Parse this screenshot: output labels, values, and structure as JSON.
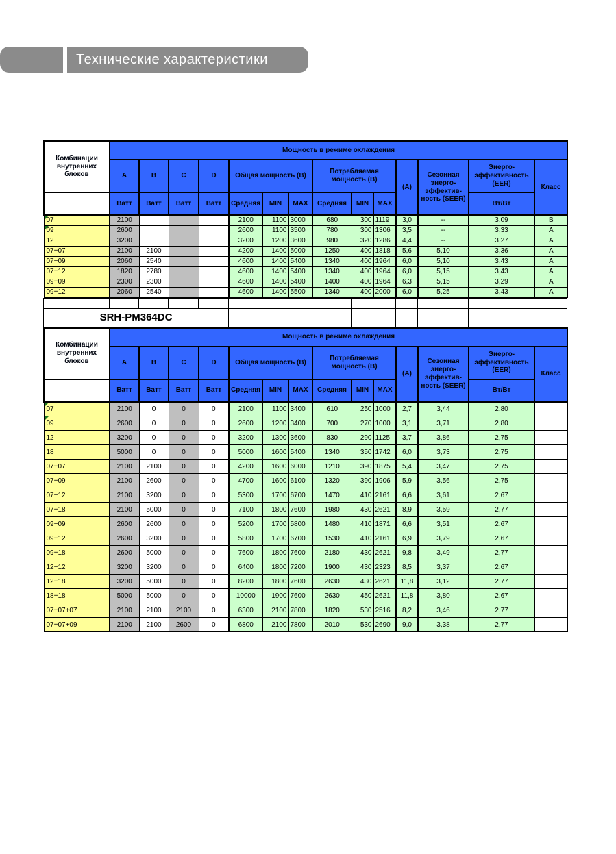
{
  "banner": {
    "title": "Технические характеристики"
  },
  "model_title": "SRH-PM364DC",
  "hdr": {
    "combos": "Комбинации внутренних блоков",
    "cooling": "Мощность в режиме охлаждения",
    "a": "A",
    "b": "B",
    "c": "C",
    "d": "D",
    "watt": "Ватт",
    "total_power": "Общая мощность (В)",
    "consumed_power": "Потребляемая мощность (В)",
    "avg": "Средняя",
    "min": "MIN",
    "max": "MAX",
    "amps": "(A)",
    "seer": "Сезонная энерго-эффектив-ность (SEER)",
    "eer": "Энерго-эффективность (EER)",
    "wt_wt": "Вт/Вт",
    "klass": "Класс"
  },
  "colors": {
    "banner_gray": "#8B8B8B",
    "header_blue": "#3366FF",
    "label_yellow": "#FFFF99",
    "cell_gray": "#BFBFBF",
    "cell_green": "#CCFFCC",
    "marker_green": "#1E7A1E"
  },
  "table1": {
    "rows": [
      {
        "combo": "07",
        "marker": true,
        "a": "2100",
        "b": "",
        "c": "",
        "d": "",
        "tavg": "2100",
        "tmin": "1100",
        "tmax": "3000",
        "cavg": "680",
        "cmin": "300",
        "cmax": "1119",
        "amp": "3,0",
        "seer": "--",
        "eer": "3,09",
        "cls": "B"
      },
      {
        "combo": "09",
        "marker": true,
        "a": "2600",
        "b": "",
        "c": "",
        "d": "",
        "tavg": "2600",
        "tmin": "1100",
        "tmax": "3500",
        "cavg": "780",
        "cmin": "300",
        "cmax": "1306",
        "amp": "3,5",
        "seer": "--",
        "eer": "3,33",
        "cls": "A"
      },
      {
        "combo": "12",
        "a": "3200",
        "b": "",
        "c": "",
        "d": "",
        "tavg": "3200",
        "tmin": "1200",
        "tmax": "3600",
        "cavg": "980",
        "cmin": "320",
        "cmax": "1286",
        "amp": "4,4",
        "seer": "--",
        "eer": "3,27",
        "cls": "A"
      },
      {
        "combo": "07+07",
        "a": "2100",
        "b": "2100",
        "c": "",
        "d": "",
        "tavg": "4200",
        "tmin": "1400",
        "tmax": "5000",
        "cavg": "1250",
        "cmin": "400",
        "cmax": "1818",
        "amp": "5,6",
        "seer": "5,10",
        "eer": "3,36",
        "cls": "A"
      },
      {
        "combo": "07+09",
        "a": "2060",
        "b": "2540",
        "c": "",
        "d": "",
        "tavg": "4600",
        "tmin": "1400",
        "tmax": "5400",
        "cavg": "1340",
        "cmin": "400",
        "cmax": "1964",
        "amp": "6,0",
        "seer": "5,10",
        "eer": "3,43",
        "cls": "A"
      },
      {
        "combo": "07+12",
        "a": "1820",
        "b": "2780",
        "c": "",
        "d": "",
        "tavg": "4600",
        "tmin": "1400",
        "tmax": "5400",
        "cavg": "1340",
        "cmin": "400",
        "cmax": "1964",
        "amp": "6,0",
        "seer": "5,15",
        "eer": "3,43",
        "cls": "A"
      },
      {
        "combo": "09+09",
        "a": "2300",
        "b": "2300",
        "c": "",
        "d": "",
        "tavg": "4600",
        "tmin": "1400",
        "tmax": "5400",
        "cavg": "1400",
        "cmin": "400",
        "cmax": "1964",
        "amp": "6,3",
        "seer": "5,15",
        "eer": "3,29",
        "cls": "A"
      },
      {
        "combo": "09+12",
        "a": "2060",
        "b": "2540",
        "c": "",
        "d": "",
        "tavg": "4600",
        "tmin": "1400",
        "tmax": "5500",
        "cavg": "1340",
        "cmin": "400",
        "cmax": "2000",
        "amp": "6,0",
        "seer": "5,25",
        "eer": "3,43",
        "cls": "A"
      }
    ]
  },
  "table2": {
    "rows": [
      {
        "combo": "07",
        "marker": true,
        "a": "2100",
        "b": "0",
        "c": "0",
        "d": "0",
        "tavg": "2100",
        "tmin": "1100",
        "tmax": "3400",
        "cavg": "610",
        "cmin": "250",
        "cmax": "1000",
        "amp": "2,7",
        "seer": "3,44",
        "eer": "2,80",
        "cls": ""
      },
      {
        "combo": "09",
        "marker": true,
        "a": "2600",
        "b": "0",
        "c": "0",
        "d": "0",
        "tavg": "2600",
        "tmin": "1200",
        "tmax": "3400",
        "cavg": "700",
        "cmin": "270",
        "cmax": "1000",
        "amp": "3,1",
        "seer": "3,71",
        "eer": "2,80",
        "cls": ""
      },
      {
        "combo": "12",
        "a": "3200",
        "b": "0",
        "c": "0",
        "d": "0",
        "tavg": "3200",
        "tmin": "1300",
        "tmax": "3600",
        "cavg": "830",
        "cmin": "290",
        "cmax": "1125",
        "amp": "3,7",
        "seer": "3,86",
        "eer": "2,75",
        "cls": ""
      },
      {
        "combo": "18",
        "a": "5000",
        "b": "0",
        "c": "0",
        "d": "0",
        "tavg": "5000",
        "tmin": "1600",
        "tmax": "5400",
        "cavg": "1340",
        "cmin": "350",
        "cmax": "1742",
        "amp": "6,0",
        "seer": "3,73",
        "eer": "2,75",
        "cls": ""
      },
      {
        "combo": "07+07",
        "a": "2100",
        "b": "2100",
        "c": "0",
        "d": "0",
        "tavg": "4200",
        "tmin": "1600",
        "tmax": "6000",
        "cavg": "1210",
        "cmin": "390",
        "cmax": "1875",
        "amp": "5,4",
        "seer": "3,47",
        "eer": "2,75",
        "cls": ""
      },
      {
        "combo": "07+09",
        "a": "2100",
        "b": "2600",
        "c": "0",
        "d": "0",
        "tavg": "4700",
        "tmin": "1600",
        "tmax": "6100",
        "cavg": "1320",
        "cmin": "390",
        "cmax": "1906",
        "amp": "5,9",
        "seer": "3,56",
        "eer": "2,75",
        "cls": ""
      },
      {
        "combo": "07+12",
        "a": "2100",
        "b": "3200",
        "c": "0",
        "d": "0",
        "tavg": "5300",
        "tmin": "1700",
        "tmax": "6700",
        "cavg": "1470",
        "cmin": "410",
        "cmax": "2161",
        "amp": "6,6",
        "seer": "3,61",
        "eer": "2,67",
        "cls": ""
      },
      {
        "combo": "07+18",
        "a": "2100",
        "b": "5000",
        "c": "0",
        "d": "0",
        "tavg": "7100",
        "tmin": "1800",
        "tmax": "7600",
        "cavg": "1980",
        "cmin": "430",
        "cmax": "2621",
        "amp": "8,9",
        "seer": "3,59",
        "eer": "2,77",
        "cls": ""
      },
      {
        "combo": "09+09",
        "a": "2600",
        "b": "2600",
        "c": "0",
        "d": "0",
        "tavg": "5200",
        "tmin": "1700",
        "tmax": "5800",
        "cavg": "1480",
        "cmin": "410",
        "cmax": "1871",
        "amp": "6,6",
        "seer": "3,51",
        "eer": "2,67",
        "cls": ""
      },
      {
        "combo": "09+12",
        "a": "2600",
        "b": "3200",
        "c": "0",
        "d": "0",
        "tavg": "5800",
        "tmin": "1700",
        "tmax": "6700",
        "cavg": "1530",
        "cmin": "410",
        "cmax": "2161",
        "amp": "6,9",
        "seer": "3,79",
        "eer": "2,67",
        "cls": ""
      },
      {
        "combo": "09+18",
        "a": "2600",
        "b": "5000",
        "c": "0",
        "d": "0",
        "tavg": "7600",
        "tmin": "1800",
        "tmax": "7600",
        "cavg": "2180",
        "cmin": "430",
        "cmax": "2621",
        "amp": "9,8",
        "seer": "3,49",
        "eer": "2,77",
        "cls": ""
      },
      {
        "combo": "12+12",
        "a": "3200",
        "b": "3200",
        "c": "0",
        "d": "0",
        "tavg": "6400",
        "tmin": "1800",
        "tmax": "7200",
        "cavg": "1900",
        "cmin": "430",
        "cmax": "2323",
        "amp": "8,5",
        "seer": "3,37",
        "eer": "2,67",
        "cls": ""
      },
      {
        "combo": "12+18",
        "a": "3200",
        "b": "5000",
        "c": "0",
        "d": "0",
        "tavg": "8200",
        "tmin": "1800",
        "tmax": "7600",
        "cavg": "2630",
        "cmin": "430",
        "cmax": "2621",
        "amp": "11,8",
        "seer": "3,12",
        "eer": "2,77",
        "cls": ""
      },
      {
        "combo": "18+18",
        "a": "5000",
        "b": "5000",
        "c": "0",
        "d": "0",
        "tavg": "10000",
        "tmin": "1900",
        "tmax": "7600",
        "cavg": "2630",
        "cmin": "450",
        "cmax": "2621",
        "amp": "11,8",
        "seer": "3,80",
        "eer": "2,67",
        "cls": ""
      },
      {
        "combo": "07+07+07",
        "a": "2100",
        "b": "2100",
        "c": "2100",
        "d": "0",
        "tavg": "6300",
        "tmin": "2100",
        "tmax": "7800",
        "cavg": "1820",
        "cmin": "530",
        "cmax": "2516",
        "amp": "8,2",
        "seer": "3,46",
        "eer": "2,77",
        "cls": ""
      },
      {
        "combo": "07+07+09",
        "a": "2100",
        "b": "2100",
        "c": "2600",
        "d": "0",
        "tavg": "6800",
        "tmin": "2100",
        "tmax": "7800",
        "cavg": "2010",
        "cmin": "530",
        "cmax": "2690",
        "amp": "9,0",
        "seer": "3,38",
        "eer": "2,77",
        "cls": ""
      }
    ]
  }
}
